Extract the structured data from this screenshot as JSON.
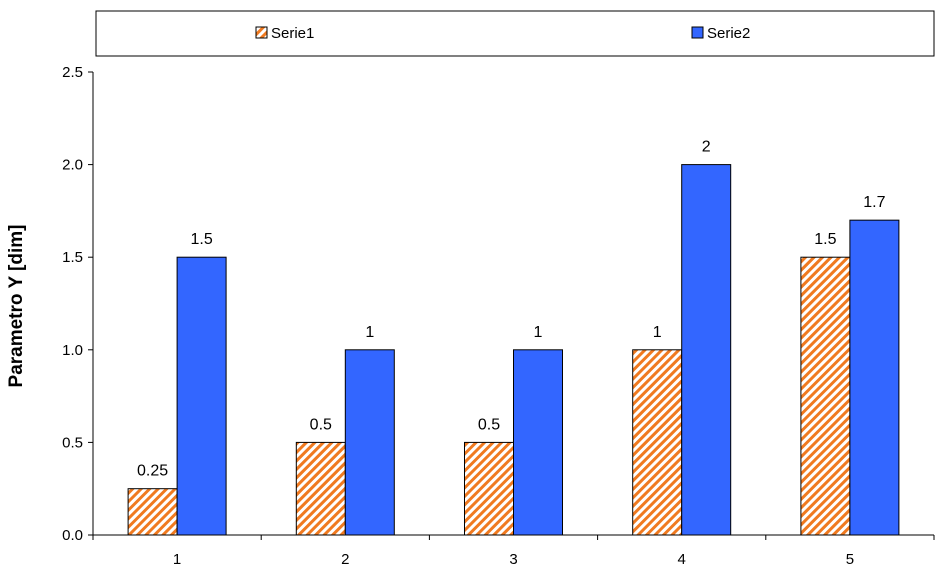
{
  "chart_data": {
    "type": "bar",
    "categories": [
      "1",
      "2",
      "3",
      "4",
      "5"
    ],
    "series": [
      {
        "name": "Serie1",
        "values": [
          0.25,
          0.5,
          0.5,
          1,
          1.5
        ],
        "labels": [
          "0.25",
          "0.5",
          "0.5",
          "1",
          "1.5"
        ],
        "color": "#F07A20",
        "pattern": "diagonal-hatch"
      },
      {
        "name": "Serie2",
        "values": [
          1.5,
          1,
          1,
          2,
          1.7
        ],
        "labels": [
          "1.5",
          "1",
          "1",
          "2",
          "1.7"
        ],
        "color": "#3366FF",
        "pattern": "solid"
      }
    ],
    "title": "",
    "xlabel": "",
    "ylabel": "Parametro Y [dim]",
    "ylim": [
      0,
      2.5
    ],
    "yticks": [
      "0.0",
      "0.5",
      "1.0",
      "1.5",
      "2.0",
      "2.5"
    ],
    "grid": false,
    "legend_position": "top"
  }
}
